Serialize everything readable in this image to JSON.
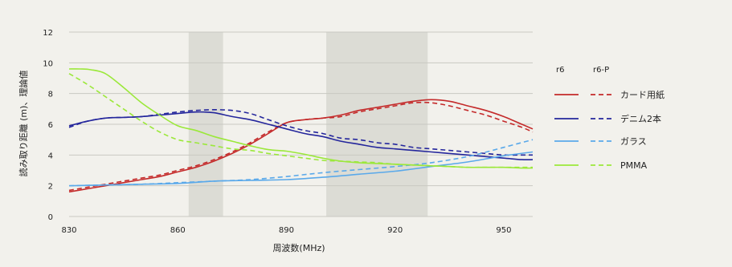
{
  "chart_data": {
    "type": "line",
    "xlabel": "周波数(MHz)",
    "ylabel": "読み取り距離 (m)、理論値",
    "xlim": [
      830,
      958
    ],
    "ylim": [
      0,
      12
    ],
    "x_ticks": [
      830,
      860,
      890,
      920,
      950
    ],
    "y_ticks": [
      0,
      2,
      4,
      6,
      8,
      10,
      12
    ],
    "grid": "horizontal",
    "shaded_bands": [
      [
        863,
        872.5
      ],
      [
        901,
        929
      ]
    ],
    "legend": {
      "position": "right",
      "col_headers": [
        "r6",
        "r6-P"
      ]
    },
    "series": [
      {
        "name": "カード用紙",
        "color": "#c42a2a",
        "r6": {
          "x": [
            830,
            835,
            840,
            845,
            850,
            855,
            860,
            865,
            870,
            875,
            880,
            885,
            890,
            895,
            900,
            905,
            910,
            915,
            920,
            925,
            930,
            935,
            940,
            945,
            950,
            955,
            958
          ],
          "y": [
            1.6,
            1.8,
            2.0,
            2.2,
            2.4,
            2.6,
            2.9,
            3.2,
            3.6,
            4.1,
            4.7,
            5.4,
            6.1,
            6.3,
            6.4,
            6.6,
            6.9,
            7.1,
            7.3,
            7.5,
            7.6,
            7.5,
            7.2,
            6.9,
            6.5,
            6.0,
            5.7
          ]
        },
        "r6_p": {
          "x": [
            830,
            835,
            840,
            845,
            850,
            855,
            860,
            865,
            870,
            875,
            880,
            885,
            890,
            895,
            900,
            905,
            910,
            915,
            920,
            925,
            930,
            935,
            940,
            945,
            950,
            955,
            958
          ],
          "y": [
            1.7,
            1.9,
            2.1,
            2.3,
            2.5,
            2.7,
            3.0,
            3.3,
            3.7,
            4.2,
            4.8,
            5.5,
            6.1,
            6.3,
            6.4,
            6.5,
            6.8,
            7.0,
            7.2,
            7.4,
            7.4,
            7.2,
            6.9,
            6.6,
            6.2,
            5.8,
            5.5
          ]
        }
      },
      {
        "name": "デニム2本",
        "color": "#24269c",
        "r6": {
          "x": [
            830,
            835,
            840,
            845,
            850,
            855,
            860,
            865,
            870,
            875,
            880,
            885,
            890,
            895,
            900,
            905,
            910,
            915,
            920,
            925,
            930,
            935,
            940,
            945,
            950,
            955,
            958
          ],
          "y": [
            5.9,
            6.2,
            6.4,
            6.45,
            6.5,
            6.6,
            6.7,
            6.8,
            6.75,
            6.5,
            6.3,
            6.0,
            5.7,
            5.4,
            5.2,
            4.9,
            4.7,
            4.5,
            4.4,
            4.3,
            4.2,
            4.1,
            4.0,
            3.9,
            3.8,
            3.7,
            3.7
          ]
        },
        "r6_p": {
          "x": [
            830,
            835,
            840,
            845,
            850,
            855,
            860,
            865,
            870,
            875,
            880,
            885,
            890,
            895,
            900,
            905,
            910,
            915,
            920,
            925,
            930,
            935,
            940,
            945,
            950,
            955,
            958
          ],
          "y": [
            5.8,
            6.2,
            6.4,
            6.45,
            6.5,
            6.65,
            6.8,
            6.9,
            6.95,
            6.9,
            6.7,
            6.3,
            5.9,
            5.6,
            5.4,
            5.1,
            5.0,
            4.8,
            4.7,
            4.5,
            4.4,
            4.3,
            4.2,
            4.1,
            4.0,
            4.0,
            4.0
          ]
        }
      },
      {
        "name": "ガラス",
        "color": "#5aa9ea",
        "r6": {
          "x": [
            830,
            840,
            850,
            860,
            870,
            880,
            890,
            900,
            910,
            920,
            930,
            940,
            950,
            958
          ],
          "y": [
            2.0,
            2.05,
            2.1,
            2.15,
            2.3,
            2.35,
            2.4,
            2.55,
            2.75,
            2.95,
            3.25,
            3.55,
            3.95,
            4.2
          ]
        },
        "r6_p": {
          "x": [
            830,
            840,
            850,
            860,
            870,
            880,
            890,
            900,
            910,
            920,
            930,
            940,
            950,
            958
          ],
          "y": [
            2.0,
            2.05,
            2.1,
            2.2,
            2.3,
            2.4,
            2.6,
            2.85,
            3.05,
            3.25,
            3.5,
            3.9,
            4.5,
            5.0
          ]
        }
      },
      {
        "name": "PMMA",
        "color": "#9be83a",
        "r6": {
          "x": [
            830,
            833,
            836,
            840,
            845,
            850,
            855,
            860,
            865,
            870,
            875,
            880,
            885,
            890,
            895,
            900,
            905,
            910,
            915,
            920,
            925,
            930,
            935,
            940,
            945,
            950,
            955,
            958
          ],
          "y": [
            9.6,
            9.6,
            9.55,
            9.3,
            8.4,
            7.4,
            6.6,
            5.9,
            5.6,
            5.2,
            4.9,
            4.6,
            4.35,
            4.25,
            4.05,
            3.8,
            3.6,
            3.5,
            3.45,
            3.4,
            3.35,
            3.3,
            3.25,
            3.2,
            3.2,
            3.2,
            3.15,
            3.15
          ]
        },
        "r6_p": {
          "x": [
            830,
            835,
            840,
            845,
            850,
            855,
            860,
            865,
            870,
            875,
            880,
            885,
            890,
            895,
            900,
            905,
            910,
            915,
            920,
            925,
            930,
            935,
            940,
            945,
            950,
            955,
            958
          ],
          "y": [
            9.3,
            8.6,
            7.8,
            7.0,
            6.2,
            5.5,
            5.0,
            4.8,
            4.6,
            4.4,
            4.3,
            4.1,
            3.95,
            3.8,
            3.65,
            3.6,
            3.55,
            3.5,
            3.4,
            3.35,
            3.3,
            3.25,
            3.2,
            3.2,
            3.2,
            3.2,
            3.2
          ]
        }
      }
    ]
  }
}
